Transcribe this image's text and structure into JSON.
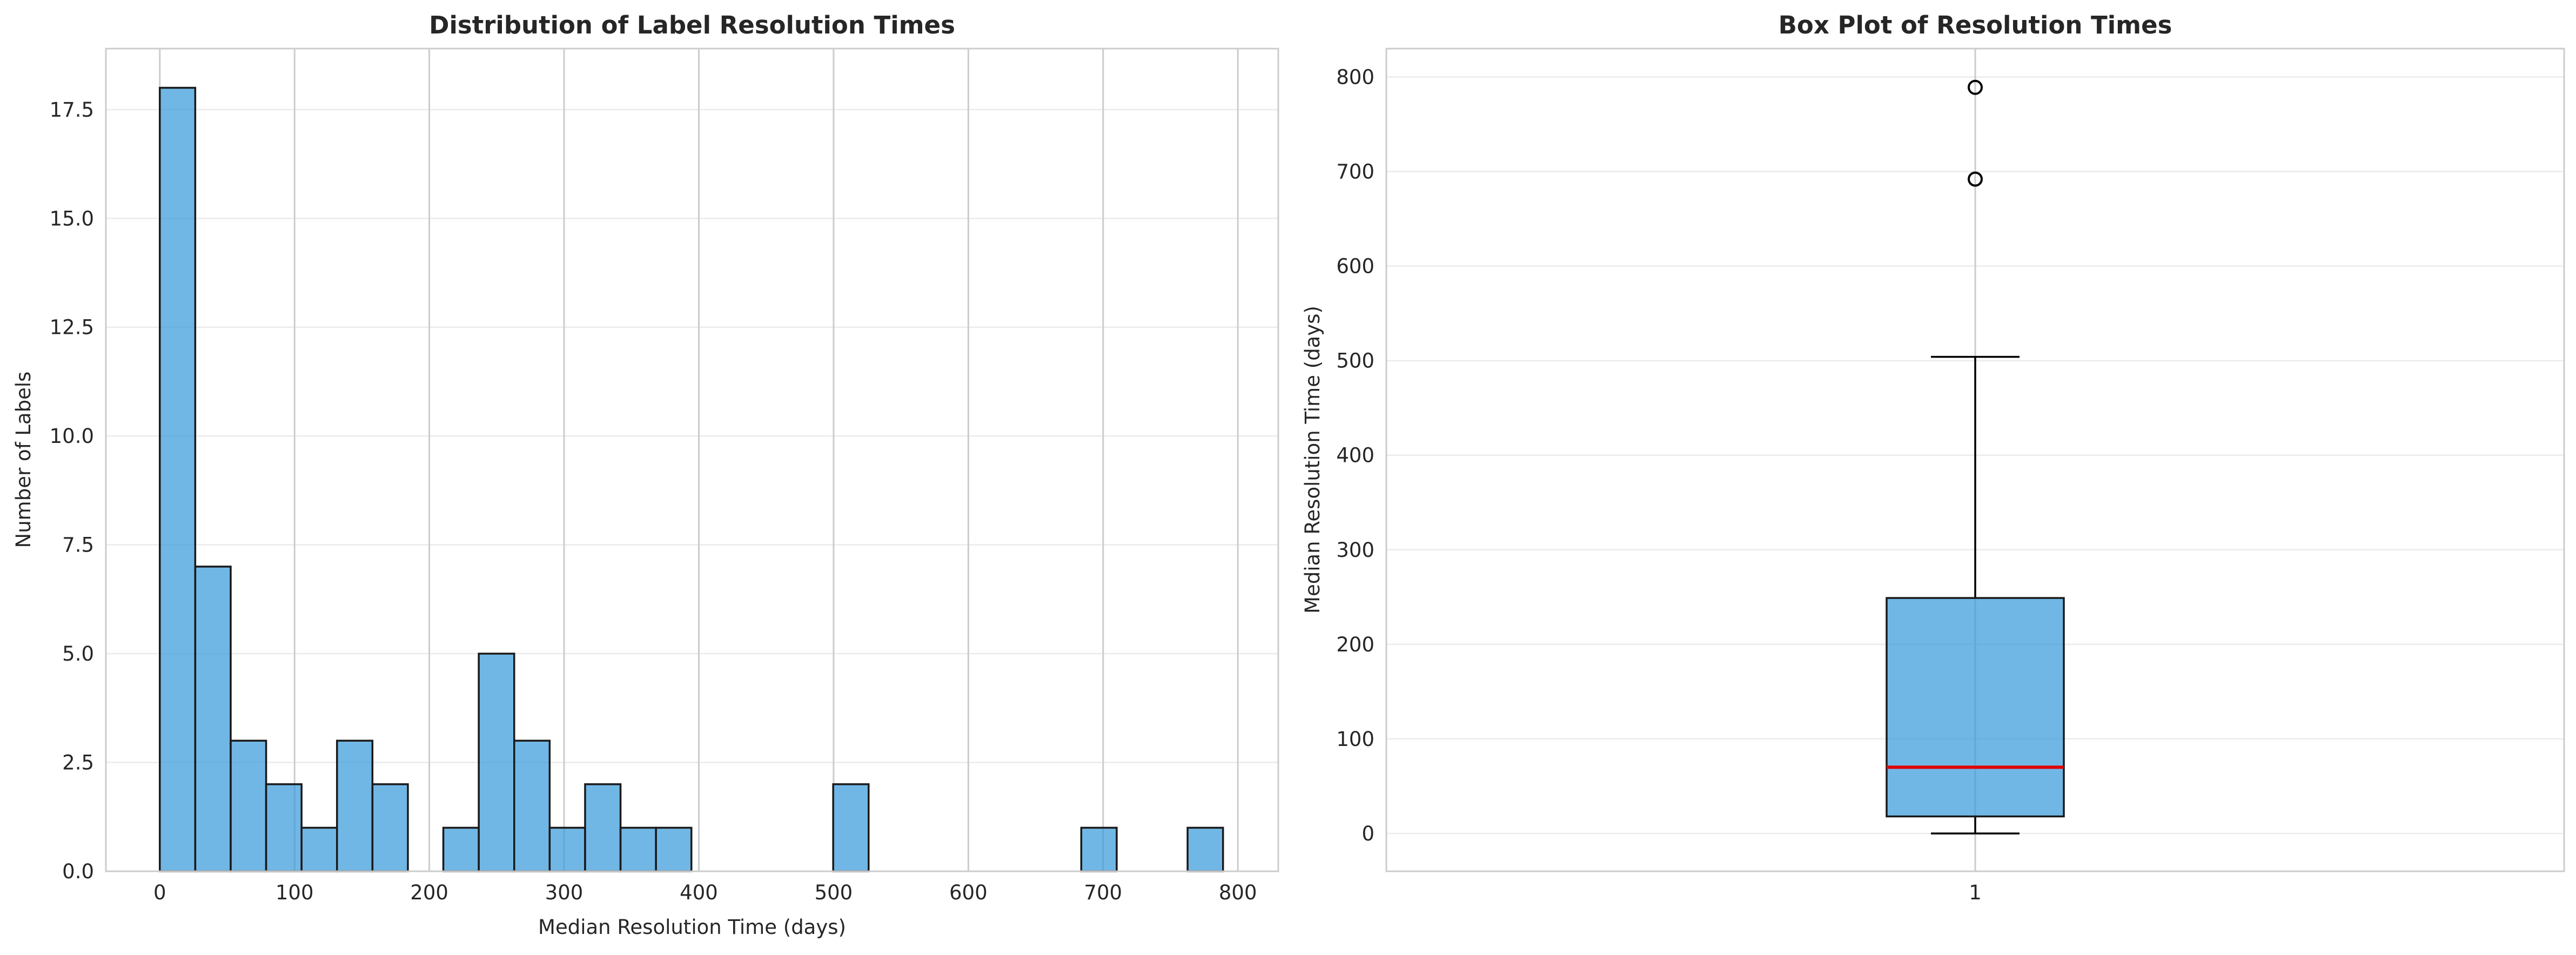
{
  "chart_data": [
    {
      "type": "bar",
      "subtype": "histogram",
      "title": "Distribution of Label Resolution Times",
      "xlabel": "Median Resolution Time (days)",
      "ylabel": "Number of Labels",
      "xlim": [
        -40,
        830
      ],
      "ylim": [
        0,
        18.9
      ],
      "xticks": [
        0,
        100,
        200,
        300,
        400,
        500,
        600,
        700,
        800
      ],
      "yticks": [
        0.0,
        2.5,
        5.0,
        7.5,
        10.0,
        12.5,
        15.0,
        17.5
      ],
      "ytick_labels": [
        "0.0",
        "2.5",
        "5.0",
        "7.5",
        "10.0",
        "12.5",
        "15.0",
        "17.5"
      ],
      "grid": "x-major strong, y faint",
      "color": "#3498db",
      "bin_width": 26.3,
      "bin_start": 0,
      "counts": [
        18,
        7,
        3,
        2,
        1,
        3,
        2,
        0,
        1,
        5,
        3,
        1,
        2,
        1,
        1,
        0,
        0,
        0,
        0,
        2,
        0,
        0,
        0,
        0,
        0,
        0,
        1,
        0,
        0,
        1
      ]
    },
    {
      "type": "box",
      "title": "Box Plot of Resolution Times",
      "xlabel": "",
      "ylabel": "Median Resolution Time (days)",
      "xtick_labels": [
        "1"
      ],
      "ylim": [
        -40,
        830
      ],
      "yticks": [
        0,
        100,
        200,
        300,
        400,
        500,
        600,
        700,
        800
      ],
      "grid": "y faint, x strong",
      "color": "#3498db",
      "median_color": "#e00000",
      "whisker_low": 0,
      "q1": 18,
      "median": 70,
      "q3": 249,
      "whisker_high": 504,
      "fliers": [
        692,
        789
      ]
    }
  ]
}
